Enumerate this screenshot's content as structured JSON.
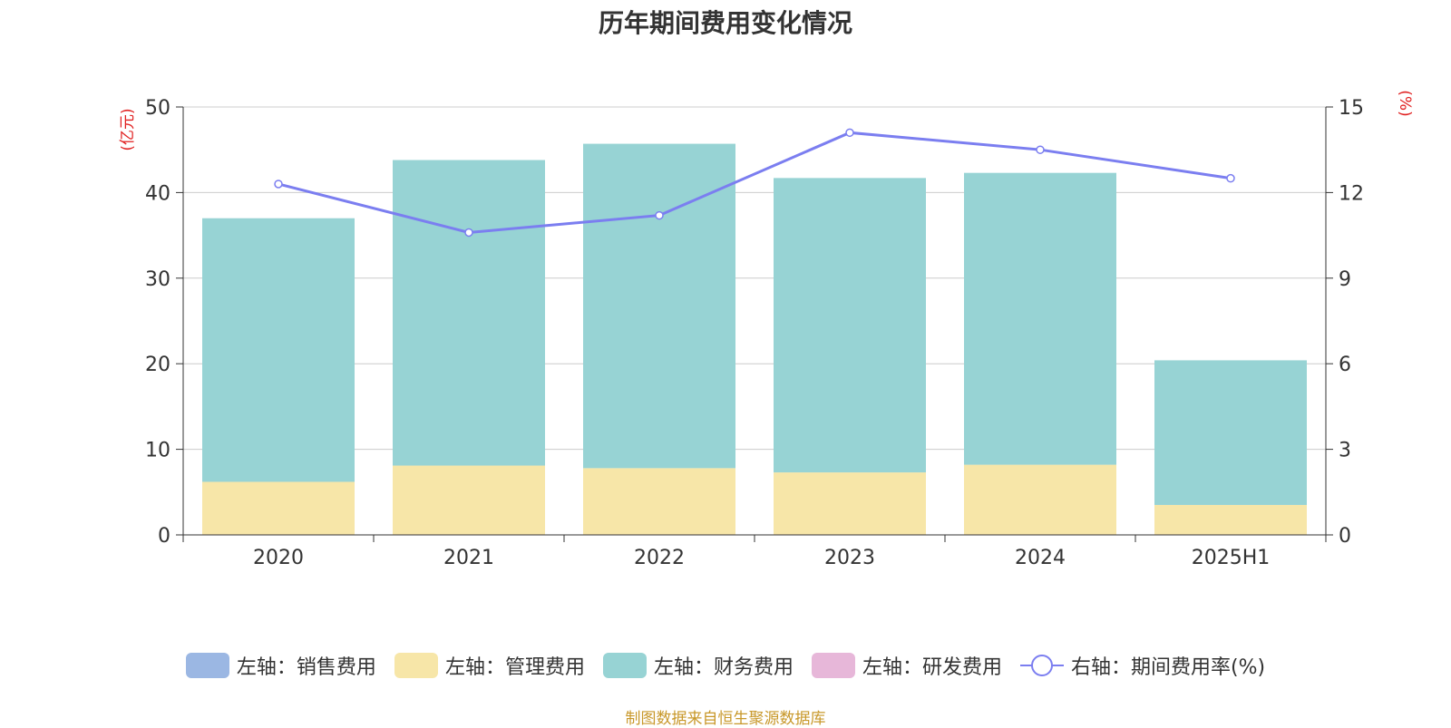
{
  "title": "历年期间费用变化情况",
  "source": "制图数据来自恒生聚源数据库",
  "chart_data": {
    "type": "bar",
    "stacked": true,
    "categories": [
      "2020",
      "2021",
      "2022",
      "2023",
      "2024",
      "2025H1"
    ],
    "left_axis": {
      "unit_label": "(亿元)",
      "ylim": [
        0,
        50
      ],
      "ticks": [
        0,
        10,
        20,
        30,
        40,
        50
      ]
    },
    "right_axis": {
      "unit_label": "(%)",
      "ylim": [
        0,
        15
      ],
      "ticks": [
        0,
        3,
        6,
        9,
        12,
        15
      ]
    },
    "grid": true,
    "legend_position": "bottom",
    "series": [
      {
        "name": "左轴：销售费用",
        "type": "bar",
        "axis": "left",
        "color": "#9bb7e3",
        "values": [
          0,
          0,
          0,
          0,
          0,
          0
        ]
      },
      {
        "name": "左轴：管理费用",
        "type": "bar",
        "axis": "left",
        "color": "#f7e6a8",
        "values": [
          6.2,
          8.1,
          7.8,
          7.3,
          8.2,
          3.5
        ]
      },
      {
        "name": "左轴：财务费用",
        "type": "bar",
        "axis": "left",
        "color": "#97d3d4",
        "values": [
          30.8,
          35.7,
          37.9,
          34.4,
          34.1,
          16.9
        ]
      },
      {
        "name": "左轴：研发费用",
        "type": "bar",
        "axis": "left",
        "color": "#e7b7d9",
        "values": [
          0,
          0,
          0,
          0,
          0,
          0
        ]
      },
      {
        "name": "右轴：期间费用率(%)",
        "type": "line",
        "axis": "right",
        "color": "#7b7ef0",
        "values": [
          12.3,
          10.6,
          11.2,
          14.1,
          13.5,
          12.5
        ]
      }
    ]
  }
}
